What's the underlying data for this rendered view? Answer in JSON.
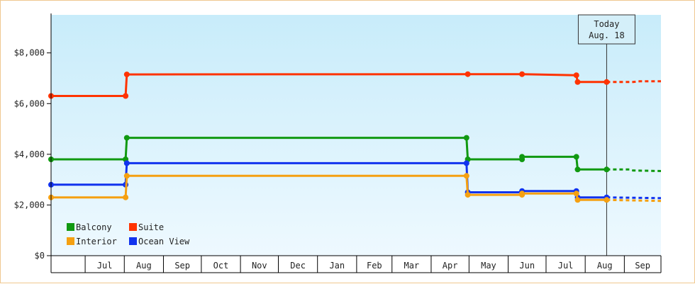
{
  "chart_data": {
    "type": "line",
    "title": "",
    "xlabel": "",
    "ylabel": "",
    "ylim": [
      0,
      9500
    ],
    "y_ticks": [
      0,
      2000,
      4000,
      6000,
      8000
    ],
    "y_tick_labels": [
      "$0",
      "$2,000",
      "$4,000",
      "$6,000",
      "$8,000"
    ],
    "x_range": [
      "2020-06-04",
      "2021-09-30"
    ],
    "month_labels": [
      {
        "label": "Jul",
        "start": "2020-07-01"
      },
      {
        "label": "Aug",
        "start": "2020-08-01"
      },
      {
        "label": "Sep",
        "start": "2020-09-01"
      },
      {
        "label": "Oct",
        "start": "2020-10-01"
      },
      {
        "label": "Nov",
        "start": "2020-11-01"
      },
      {
        "label": "Dec",
        "start": "2020-12-01"
      },
      {
        "label": "Jan",
        "start": "2021-01-01"
      },
      {
        "label": "Feb",
        "start": "2021-02-01"
      },
      {
        "label": "Mar",
        "start": "2021-03-01"
      },
      {
        "label": "Apr",
        "start": "2021-04-01"
      },
      {
        "label": "May",
        "start": "2021-05-01"
      },
      {
        "label": "Jun",
        "start": "2021-06-01"
      },
      {
        "label": "Jul",
        "start": "2021-07-01"
      },
      {
        "label": "Aug",
        "start": "2021-08-01"
      },
      {
        "label": "Sep",
        "start": "2021-09-01"
      }
    ],
    "background": {
      "top": "#c8ecfa",
      "bottom": "#eef9ff"
    },
    "grid": false,
    "legend_position": "bottom-left",
    "today_marker": {
      "date": "2021-08-18",
      "line1": "Today",
      "line2": "Aug. 18"
    },
    "series": [
      {
        "name": "Suite",
        "color": "#ff3300",
        "points": [
          {
            "date": "2020-06-04",
            "value": 6300
          },
          {
            "date": "2020-08-02",
            "value": 6300
          },
          {
            "date": "2020-08-03",
            "value": 7150
          },
          {
            "date": "2021-04-30",
            "value": 7160
          },
          {
            "date": "2021-06-12",
            "value": 7160
          },
          {
            "date": "2021-07-25",
            "value": 7120
          },
          {
            "date": "2021-07-26",
            "value": 6850
          },
          {
            "date": "2021-08-18",
            "value": 6850
          }
        ],
        "forecast": [
          {
            "date": "2021-08-18",
            "value": 6850
          },
          {
            "date": "2021-09-08",
            "value": 6850
          },
          {
            "date": "2021-09-13",
            "value": 6880
          },
          {
            "date": "2021-09-30",
            "value": 6880
          }
        ]
      },
      {
        "name": "Balcony",
        "color": "#119911",
        "points": [
          {
            "date": "2020-06-04",
            "value": 3800
          },
          {
            "date": "2020-08-02",
            "value": 3800
          },
          {
            "date": "2020-08-03",
            "value": 4650
          },
          {
            "date": "2021-04-29",
            "value": 4650
          },
          {
            "date": "2021-04-30",
            "value": 3800
          },
          {
            "date": "2021-06-12",
            "value": 3800
          },
          {
            "date": "2021-06-12",
            "value": 3900
          },
          {
            "date": "2021-07-25",
            "value": 3900
          },
          {
            "date": "2021-07-26",
            "value": 3400
          },
          {
            "date": "2021-08-18",
            "value": 3400
          }
        ],
        "forecast": [
          {
            "date": "2021-08-18",
            "value": 3400
          },
          {
            "date": "2021-09-05",
            "value": 3400
          },
          {
            "date": "2021-09-08",
            "value": 3360
          },
          {
            "date": "2021-09-30",
            "value": 3340
          }
        ]
      },
      {
        "name": "Ocean View",
        "color": "#1133ee",
        "points": [
          {
            "date": "2020-06-04",
            "value": 2800
          },
          {
            "date": "2020-08-02",
            "value": 2800
          },
          {
            "date": "2020-08-03",
            "value": 3650
          },
          {
            "date": "2021-04-29",
            "value": 3650
          },
          {
            "date": "2021-04-30",
            "value": 2500
          },
          {
            "date": "2021-06-12",
            "value": 2500
          },
          {
            "date": "2021-06-12",
            "value": 2550
          },
          {
            "date": "2021-07-25",
            "value": 2550
          },
          {
            "date": "2021-07-26",
            "value": 2300
          },
          {
            "date": "2021-08-18",
            "value": 2300
          }
        ],
        "forecast": [
          {
            "date": "2021-08-18",
            "value": 2300
          },
          {
            "date": "2021-09-30",
            "value": 2270
          }
        ]
      },
      {
        "name": "Interior",
        "color": "#f5a011",
        "points": [
          {
            "date": "2020-06-04",
            "value": 2300
          },
          {
            "date": "2020-08-02",
            "value": 2300
          },
          {
            "date": "2020-08-03",
            "value": 3150
          },
          {
            "date": "2021-04-29",
            "value": 3150
          },
          {
            "date": "2021-04-30",
            "value": 2400
          },
          {
            "date": "2021-06-12",
            "value": 2400
          },
          {
            "date": "2021-06-12",
            "value": 2450
          },
          {
            "date": "2021-07-25",
            "value": 2450
          },
          {
            "date": "2021-07-26",
            "value": 2200
          },
          {
            "date": "2021-08-18",
            "value": 2200
          }
        ],
        "forecast": [
          {
            "date": "2021-08-18",
            "value": 2200
          },
          {
            "date": "2021-09-30",
            "value": 2160
          }
        ]
      }
    ],
    "legend": [
      {
        "name": "Balcony",
        "color": "#119911"
      },
      {
        "name": "Suite",
        "color": "#ff3300"
      },
      {
        "name": "Interior",
        "color": "#f5a011"
      },
      {
        "name": "Ocean View",
        "color": "#1133ee"
      }
    ]
  }
}
